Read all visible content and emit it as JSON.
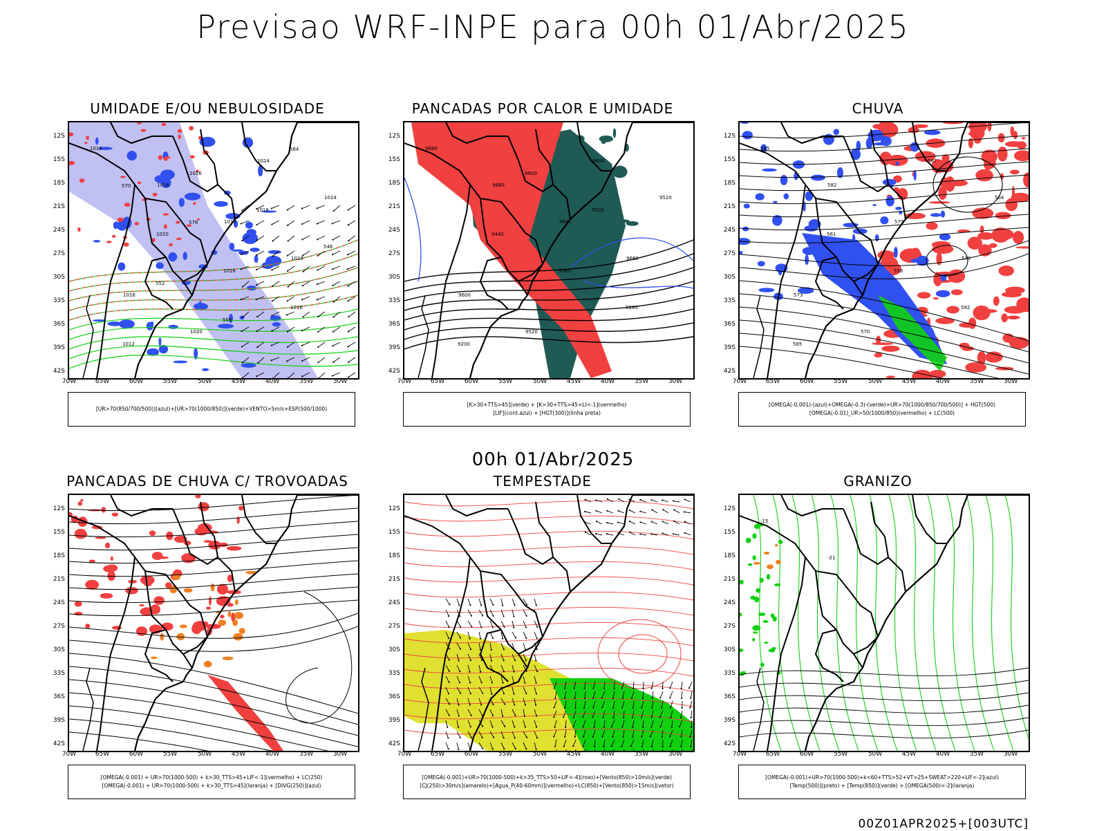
{
  "main_title": "Previsao WRF-INPE  para 00h 01/Abr/2025",
  "mid_title": "00h 01/Abr/2025",
  "footer": "00Z01APR2025+[003UTC]",
  "lat_ticks": [
    "12S",
    "15S",
    "18S",
    "21S",
    "24S",
    "27S",
    "30S",
    "33S",
    "36S",
    "39S",
    "42S"
  ],
  "lon_ticks": [
    "70W",
    "65W",
    "60W",
    "55W",
    "50W",
    "45W",
    "40W",
    "35W",
    "30W"
  ],
  "colors": {
    "blue": "#3050f0",
    "green": "#10d010",
    "red": "#f04040",
    "orange": "#f08020",
    "teal": "#1f5a55",
    "yellow": "#e0e030",
    "lightblue": "#b0b0f0"
  },
  "panels": [
    {
      "title": "UMIDADE E/OU NEBULOSIDADE",
      "legend": [
        "[UR>70(850/700/500)](azul)+[UR>70(1000/850)](verde)+VENTO>5m/s+ESP(500/1000)"
      ],
      "contour_labels": [
        "1016",
        "1016",
        "1012",
        "1018",
        "1016",
        "1020",
        "1024",
        "1024",
        "1020",
        "1016",
        "1016",
        "1012",
        "1016",
        "1016",
        "546",
        "552",
        "558",
        "564",
        "570",
        "576"
      ]
    },
    {
      "title": "PANCADAS POR CALOR E UMIDADE",
      "legend": [
        "[K>30+TTS>45](verde) + [K>30+TTS>45+LI<-1](vermelho)",
        "[LIF](cont.azul) + [HGT(300)](linha preta)"
      ],
      "contour_labels": [
        "9680",
        "9680",
        "9680",
        "9680",
        "9600",
        "9520",
        "9600",
        "9520",
        "9440",
        "9360",
        "9280",
        "9200",
        "9600",
        "9520"
      ]
    },
    {
      "title": "CHUVA",
      "legend": [
        "[OMEGA(-0.001)-(azul)+OMEGA(-0.3)-(verde)+UR>70(1000/850/700/500)] + HGT(500)",
        "[OMEGA(-0.01)_UR>50(1000/850)(vermelho) + LC(500)"
      ],
      "contour_labels": [
        "585",
        "582",
        "579",
        "576",
        "573",
        "570",
        "567",
        "564",
        "561",
        "558",
        "582",
        "585"
      ]
    },
    {
      "title": "PANCADAS DE CHUVA C/ TROVOADAS",
      "legend": [
        "[OMEGA(-0.001) + UR>70(1000-500) + k>30_TTS>45+LIF<-1](vermelho) + LC(250)",
        "[OMEGA(-0.001) + UR>70(1000-500) + k>30_TTS>45](laranja) + [DIVG(250)](azul)"
      ],
      "contour_labels": []
    },
    {
      "title": "TEMPESTADE",
      "legend": [
        "[OMEGA(-0.001)+UR>70(1000-500)+k>35_TTS>50+LIF<-4](roxo)+[Vento(850)>10m/s](verde)",
        "[CJ(250)>30m/s](amarelo)+[Agua_P(40-60mm)](vermelho)+LC(850)+[Vento(850)>15m/s](vetor)"
      ],
      "contour_labels": []
    },
    {
      "title": "GRANIZO",
      "legend": [
        "[OMEGA(-0.001)+UR>70(1000-500)+k<60+TTS>52+VT>25+SWEAT>220+LIF<-2](azul)",
        "[Temp(500)](preto) + [Temp(850)](verde) + [OMEGA(500)<-2](laranja)"
      ],
      "contour_labels": [
        "-15",
        "-21"
      ]
    }
  ]
}
